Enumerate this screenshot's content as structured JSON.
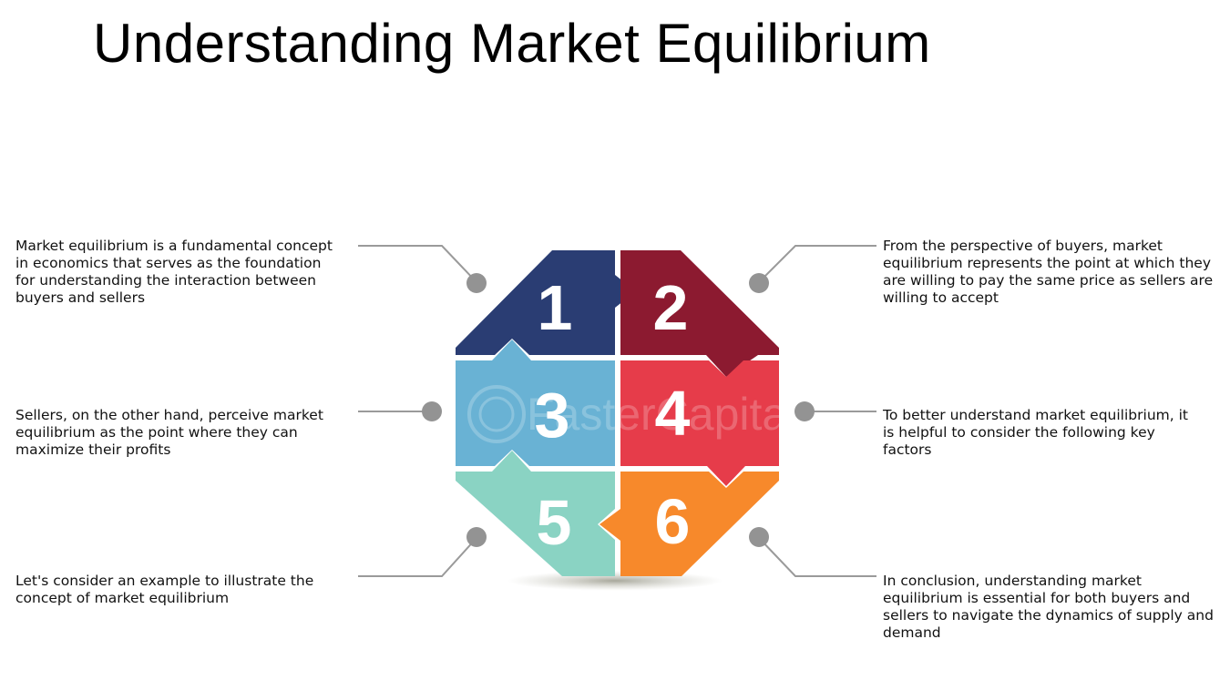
{
  "title": "Understanding Market Equilibrium",
  "pieces": [
    {
      "number": "1",
      "color": "#2a3d73",
      "text": "Market equilibrium is a fundamental concept in economics that serves as the foundation for understanding the interaction between buyers and sellers"
    },
    {
      "number": "2",
      "color": "#8c1a30",
      "text": "From the perspective of buyers, market equilibrium represents the point at which they are willing to pay the same price as sellers are willing to accept"
    },
    {
      "number": "3",
      "color": "#69b2d4",
      "text": "Sellers, on the other hand, perceive market equilibrium as the point where they can maximize their profits"
    },
    {
      "number": "4",
      "color": "#e63c4a",
      "text": "To better understand market equilibrium, it is helpful to consider the following key factors"
    },
    {
      "number": "5",
      "color": "#8ad3c3",
      "text": "Let's consider an example to illustrate the concept of market equilibrium"
    },
    {
      "number": "6",
      "color": "#f7892b",
      "text": "In conclusion, understanding market equilibrium is essential for both buyers and sellers to navigate the dynamics of supply and demand"
    }
  ],
  "watermark": "FasterCapital",
  "colors": {
    "connector": "#9a9a9a",
    "dot": "#939393"
  }
}
